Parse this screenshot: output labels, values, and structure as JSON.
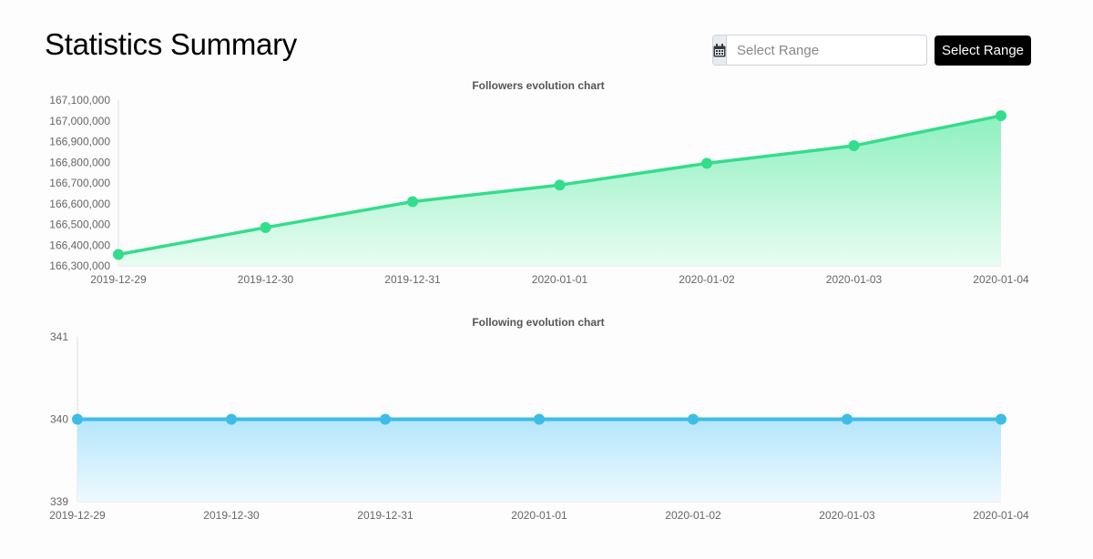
{
  "header": {
    "title": "Statistics Summary",
    "range_placeholder": "Select Range",
    "range_button_label": "Select Range",
    "calendar_icon": "calendar-icon"
  },
  "chart_data": [
    {
      "type": "area",
      "title": "Followers evolution chart",
      "xlabel": "",
      "ylabel": "",
      "categories": [
        "2019-12-29",
        "2019-12-30",
        "2019-12-31",
        "2020-01-01",
        "2020-01-02",
        "2020-01-03",
        "2020-01-04"
      ],
      "values": [
        166355000,
        166485000,
        166610000,
        166690000,
        166795000,
        166880000,
        167025000
      ],
      "ylim": [
        166300000,
        167100000
      ],
      "yticks": [
        "167,100,000",
        "167,000,000",
        "166,900,000",
        "166,800,000",
        "166,700,000",
        "166,600,000",
        "166,500,000",
        "166,400,000",
        "166,300,000"
      ],
      "grid": false,
      "legend": "none",
      "colors": {
        "line": "#34dd8c",
        "fill_top": "#8ef0bf",
        "fill_bottom": "#e8fcf2"
      }
    },
    {
      "type": "area",
      "title": "Following evolution chart",
      "xlabel": "",
      "ylabel": "",
      "categories": [
        "2019-12-29",
        "2019-12-30",
        "2019-12-31",
        "2020-01-01",
        "2020-01-02",
        "2020-01-03",
        "2020-01-04"
      ],
      "values": [
        340,
        340,
        340,
        340,
        340,
        340,
        340
      ],
      "ylim": [
        339,
        341
      ],
      "yticks": [
        "341",
        "340",
        "339"
      ],
      "grid": false,
      "legend": "none",
      "colors": {
        "line": "#3dbde6",
        "fill_top": "#b5e6fb",
        "fill_bottom": "#eef9fe"
      }
    }
  ]
}
